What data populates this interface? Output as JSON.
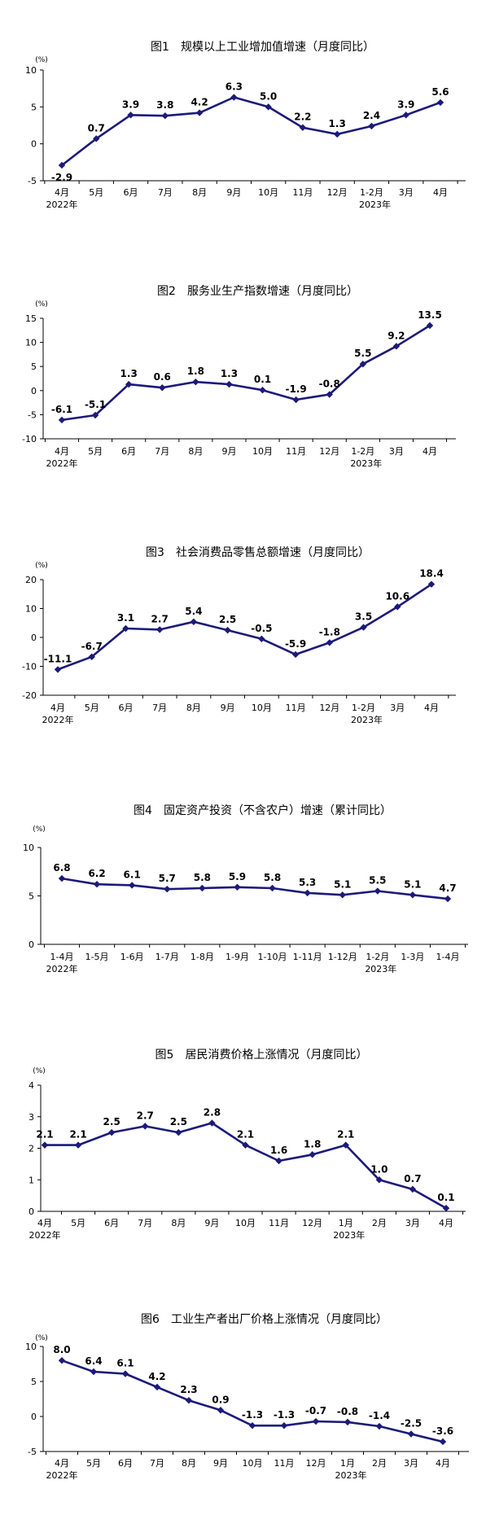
{
  "colors": {
    "series": "#1c1a7a",
    "axis": "#000000",
    "text": "#000000"
  },
  "chart_data": [
    {
      "type": "line",
      "title": "图1　规模以上工业增加值增速（月度同比）",
      "unit": "(%)",
      "ylim": [
        -5,
        10
      ],
      "yticks": [
        -5,
        0,
        5,
        10
      ],
      "categories": [
        "4月",
        "5月",
        "6月",
        "7月",
        "8月",
        "9月",
        "10月",
        "11月",
        "12月",
        "1-2月",
        "3月",
        "4月"
      ],
      "year_labels": [
        {
          "index": 0,
          "text": "2022年"
        },
        {
          "index": 9,
          "text": "2023年"
        }
      ],
      "values": [
        -2.9,
        0.7,
        3.9,
        3.8,
        4.2,
        6.3,
        5.0,
        2.2,
        1.3,
        2.4,
        3.9,
        5.6
      ],
      "value_labels": [
        "-2.9",
        "0.7",
        "3.9",
        "3.8",
        "4.2",
        "6.3",
        "5.0",
        "2.2",
        "1.3",
        "2.4",
        "3.9",
        "5.6"
      ],
      "label_side": [
        "below",
        "above",
        "above",
        "above",
        "above",
        "above",
        "above",
        "above",
        "above",
        "above",
        "above",
        "above"
      ]
    },
    {
      "type": "line",
      "title": "图2　服务业生产指数增速（月度同比）",
      "unit": "(%)",
      "ylim": [
        -10,
        15
      ],
      "yticks": [
        -10,
        -5,
        0,
        5,
        10,
        15
      ],
      "categories": [
        "4月",
        "5月",
        "6月",
        "7月",
        "8月",
        "9月",
        "10月",
        "11月",
        "12月",
        "1-2月",
        "3月",
        "4月"
      ],
      "year_labels": [
        {
          "index": 0,
          "text": "2022年"
        },
        {
          "index": 9,
          "text": "2023年"
        }
      ],
      "values": [
        -6.1,
        -5.1,
        1.3,
        0.6,
        1.8,
        1.3,
        0.1,
        -1.9,
        -0.8,
        5.5,
        9.2,
        13.5
      ],
      "value_labels": [
        "-6.1",
        "-5.1",
        "1.3",
        "0.6",
        "1.8",
        "1.3",
        "0.1",
        "-1.9",
        "-0.8",
        "5.5",
        "9.2",
        "13.5"
      ],
      "label_side": [
        "above",
        "above",
        "above",
        "above",
        "above",
        "above",
        "above",
        "above",
        "above",
        "above",
        "above",
        "above"
      ]
    },
    {
      "type": "line",
      "title": "图3　社会消费品零售总额增速（月度同比）",
      "unit": "(%)",
      "ylim": [
        -20,
        20
      ],
      "yticks": [
        -20,
        -10,
        0,
        10,
        20
      ],
      "categories": [
        "4月",
        "5月",
        "6月",
        "7月",
        "8月",
        "9月",
        "10月",
        "11月",
        "12月",
        "1-2月",
        "3月",
        "4月"
      ],
      "year_labels": [
        {
          "index": 0,
          "text": "2022年"
        },
        {
          "index": 9,
          "text": "2023年"
        }
      ],
      "values": [
        -11.1,
        -6.7,
        3.1,
        2.7,
        5.4,
        2.5,
        -0.5,
        -5.9,
        -1.8,
        3.5,
        10.6,
        18.4
      ],
      "value_labels": [
        "-11.1",
        "-6.7",
        "3.1",
        "2.7",
        "5.4",
        "2.5",
        "-0.5",
        "-5.9",
        "-1.8",
        "3.5",
        "10.6",
        "18.4"
      ],
      "label_side": [
        "above",
        "above",
        "above",
        "above",
        "above",
        "above",
        "above",
        "above",
        "above",
        "above",
        "above",
        "above"
      ]
    },
    {
      "type": "line",
      "title": "图4　固定资产投资（不含农户）增速（累计同比）",
      "unit": "(%)",
      "ylim": [
        0,
        10
      ],
      "yticks": [
        0,
        5,
        10
      ],
      "categories": [
        "1-4月",
        "1-5月",
        "1-6月",
        "1-7月",
        "1-8月",
        "1-9月",
        "1-10月",
        "1-11月",
        "1-12月",
        "1-2月",
        "1-3月",
        "1-4月"
      ],
      "year_labels": [
        {
          "index": 0,
          "text": "2022年"
        },
        {
          "index": 9,
          "text": "2023年"
        }
      ],
      "values": [
        6.8,
        6.2,
        6.1,
        5.7,
        5.8,
        5.9,
        5.8,
        5.3,
        5.1,
        5.5,
        5.1,
        4.7
      ],
      "value_labels": [
        "6.8",
        "6.2",
        "6.1",
        "5.7",
        "5.8",
        "5.9",
        "5.8",
        "5.3",
        "5.1",
        "5.5",
        "5.1",
        "4.7"
      ],
      "label_side": [
        "above",
        "above",
        "above",
        "above",
        "above",
        "above",
        "above",
        "above",
        "above",
        "above",
        "above",
        "above"
      ]
    },
    {
      "type": "line",
      "title": "图5　居民消费价格上涨情况（月度同比）",
      "unit": "(%)",
      "ylim": [
        0,
        4
      ],
      "yticks": [
        0,
        1,
        2,
        3,
        4
      ],
      "categories": [
        "4月",
        "5月",
        "6月",
        "7月",
        "8月",
        "9月",
        "10月",
        "11月",
        "12月",
        "1月",
        "2月",
        "3月",
        "4月"
      ],
      "year_labels": [
        {
          "index": 0,
          "text": "2022年"
        },
        {
          "index": 9,
          "text": "2023年"
        }
      ],
      "values": [
        2.1,
        2.1,
        2.5,
        2.7,
        2.5,
        2.8,
        2.1,
        1.6,
        1.8,
        2.1,
        1.0,
        0.7,
        0.1
      ],
      "value_labels": [
        "2.1",
        "2.1",
        "2.5",
        "2.7",
        "2.5",
        "2.8",
        "2.1",
        "1.6",
        "1.8",
        "2.1",
        "1.0",
        "0.7",
        "0.1"
      ],
      "label_side": [
        "above",
        "above",
        "above",
        "above",
        "above",
        "above",
        "above",
        "above",
        "above",
        "above",
        "above",
        "above",
        "above"
      ]
    },
    {
      "type": "line",
      "title": "图6　工业生产者出厂价格上涨情况（月度同比）",
      "unit": "(%)",
      "ylim": [
        -5,
        10
      ],
      "yticks": [
        -5,
        0,
        5,
        10
      ],
      "categories": [
        "4月",
        "5月",
        "6月",
        "7月",
        "8月",
        "9月",
        "10月",
        "11月",
        "12月",
        "1月",
        "2月",
        "3月",
        "4月"
      ],
      "year_labels": [
        {
          "index": 0,
          "text": "2022年"
        },
        {
          "index": 9,
          "text": "2023年"
        }
      ],
      "values": [
        8.0,
        6.4,
        6.1,
        4.2,
        2.3,
        0.9,
        -1.3,
        -1.3,
        -0.7,
        -0.8,
        -1.4,
        -2.5,
        -3.6
      ],
      "value_labels": [
        "8.0",
        "6.4",
        "6.1",
        "4.2",
        "2.3",
        "0.9",
        "-1.3",
        "-1.3",
        "-0.7",
        "-0.8",
        "-1.4",
        "-2.5",
        "-3.6"
      ],
      "label_side": [
        "above",
        "above",
        "above",
        "above",
        "above",
        "above",
        "above",
        "above",
        "above",
        "above",
        "above",
        "above",
        "above"
      ]
    }
  ]
}
